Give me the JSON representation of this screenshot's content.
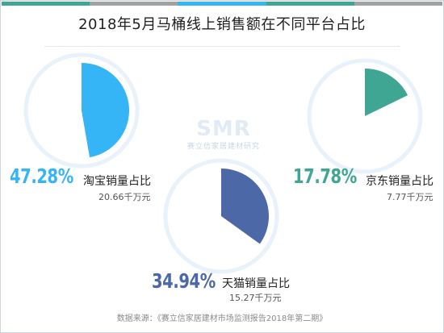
{
  "title": "2018年5月马桶线上销售额在不同平台占比",
  "watermark": {
    "logo": "SMR",
    "text": "赛立信家居建材研究"
  },
  "source": "数据来源：《赛立信家居建材市场监测报告2018年第二期》",
  "colors": {
    "taobao": "#35b5f5",
    "jingdong": "#3ea692",
    "tianmao": "#4d68a6",
    "ring": "#e9f2fb",
    "topbar": [
      "#3ea692",
      "#9fa3a8",
      "#35b5f5",
      "#3ea692",
      "#9fa3a8"
    ]
  },
  "chart_data": {
    "type": "pie",
    "title": "2018年5月马桶线上销售额在不同平台占比",
    "series": [
      {
        "name": "淘宝销量占比",
        "percent_label": "47.28%",
        "value": 47.28,
        "amount": "20.66千万元",
        "color": "#35b5f5"
      },
      {
        "name": "京东销量占比",
        "percent_label": "17.78%",
        "value": 17.78,
        "amount": "7.77千万元",
        "color": "#3ea692"
      },
      {
        "name": "天猫销量占比",
        "percent_label": "34.94%",
        "value": 34.94,
        "amount": "15.27千万元",
        "color": "#4d68a6"
      }
    ]
  }
}
